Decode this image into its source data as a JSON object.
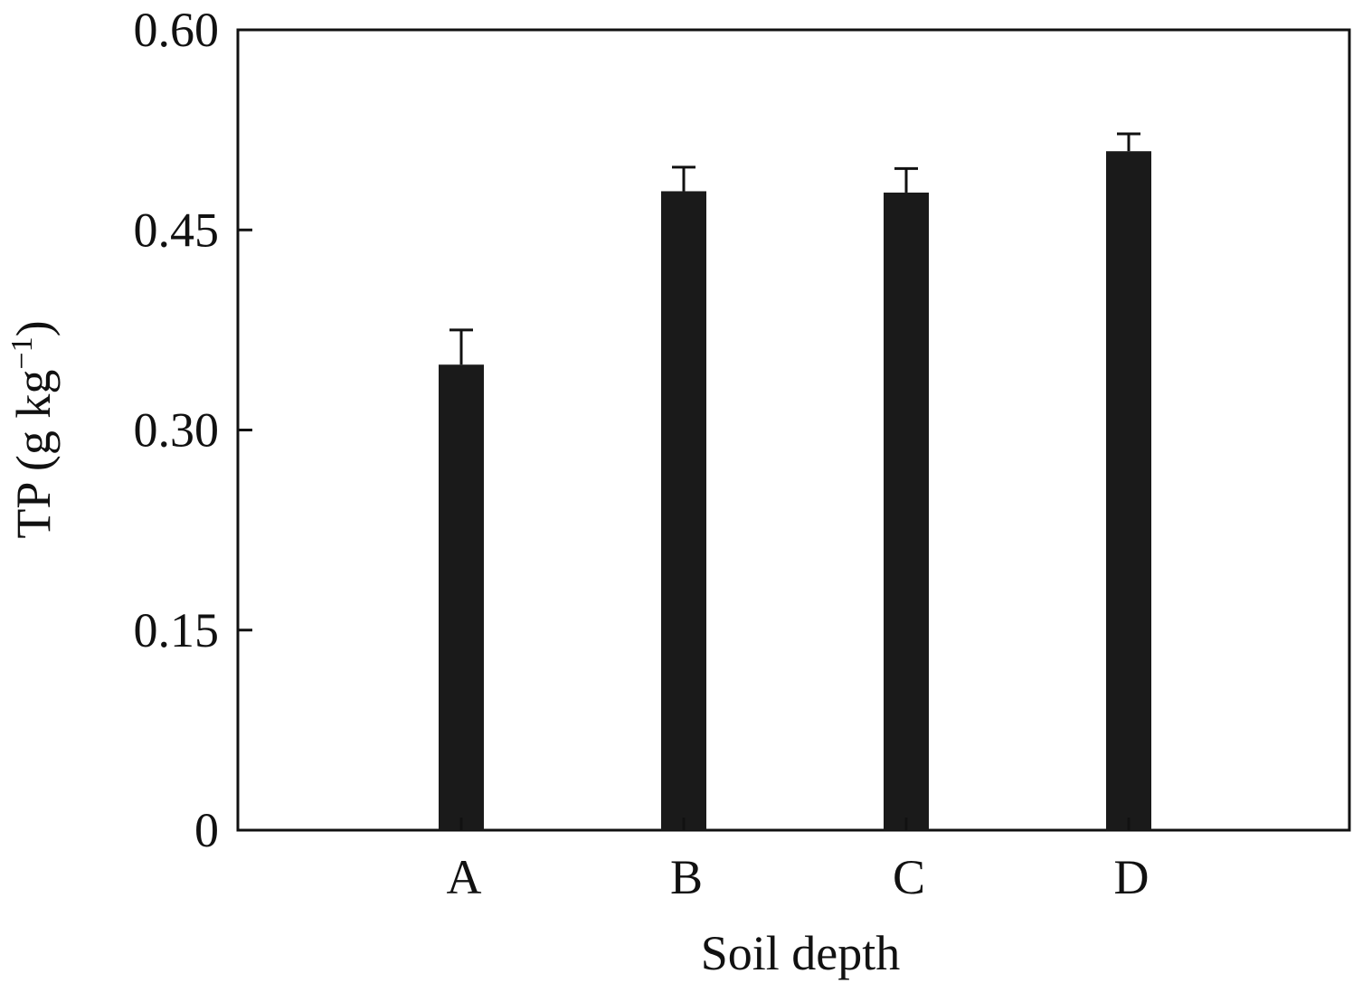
{
  "chart_data": {
    "type": "bar",
    "categories": [
      "A",
      "B",
      "C",
      "D"
    ],
    "values": [
      0.349,
      0.479,
      0.478,
      0.509
    ],
    "error_upper": [
      0.375,
      0.497,
      0.496,
      0.522
    ],
    "xlabel": "Soil depth",
    "ylabel": {
      "main": "TP (g kg",
      "sup": "−1",
      "close": ")"
    },
    "ylim": [
      0,
      0.6
    ],
    "yticks": [
      0,
      0.15,
      0.3,
      0.45,
      0.6
    ],
    "ytick_labels": [
      "0",
      "0.15",
      "0.30",
      "0.45",
      "0.60"
    ],
    "grid": false,
    "bar_color": "#1a1a1a"
  }
}
